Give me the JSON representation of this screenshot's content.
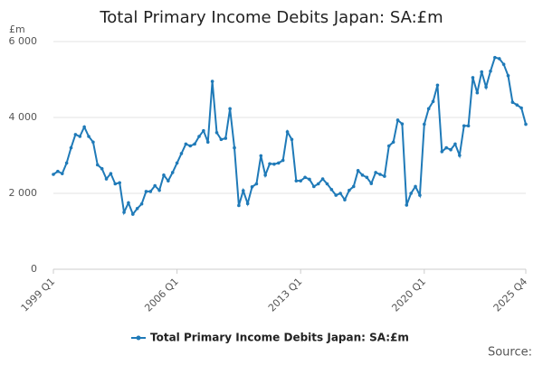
{
  "chart_data": {
    "type": "line",
    "title": "Total Primary Income Debits Japan: SA:£m",
    "y_unit": "£m",
    "source": "Source:",
    "categories": [
      "1999 Q1",
      null,
      null,
      null,
      null,
      null,
      null,
      null,
      null,
      null,
      null,
      null,
      null,
      null,
      null,
      null,
      null,
      null,
      null,
      null,
      null,
      null,
      null,
      null,
      null,
      null,
      null,
      null,
      "2006 Q1",
      null,
      null,
      null,
      null,
      null,
      null,
      null,
      null,
      null,
      null,
      null,
      null,
      null,
      null,
      null,
      null,
      null,
      null,
      null,
      null,
      null,
      null,
      null,
      null,
      null,
      null,
      null,
      "2013 Q1",
      null,
      null,
      null,
      null,
      null,
      null,
      null,
      null,
      null,
      null,
      null,
      null,
      null,
      null,
      null,
      null,
      null,
      null,
      null,
      null,
      null,
      null,
      null,
      null,
      null,
      null,
      null,
      "2020 Q1",
      null,
      null,
      null,
      null,
      null,
      null,
      null,
      null,
      null,
      null,
      null,
      null,
      null,
      null,
      null,
      null,
      null,
      null,
      null,
      null,
      null,
      null,
      "2025 Q4"
    ],
    "series": [
      {
        "name": "Total Primary Income Debits Japan: SA:£m",
        "color": "#1f7ab8",
        "values": [
          2500,
          2580,
          2520,
          2800,
          3200,
          3550,
          3500,
          3750,
          3500,
          3350,
          2750,
          2650,
          2380,
          2520,
          2250,
          2280,
          1500,
          1750,
          1450,
          1600,
          1720,
          2050,
          2050,
          2200,
          2080,
          2480,
          2330,
          2550,
          2800,
          3050,
          3300,
          3250,
          3300,
          3500,
          3650,
          3350,
          4950,
          3600,
          3420,
          3450,
          4230,
          3200,
          1680,
          2070,
          1730,
          2170,
          2250,
          2990,
          2480,
          2780,
          2770,
          2800,
          2870,
          3620,
          3420,
          2330,
          2330,
          2420,
          2370,
          2180,
          2250,
          2380,
          2250,
          2100,
          1950,
          2000,
          1830,
          2080,
          2180,
          2600,
          2480,
          2420,
          2260,
          2550,
          2500,
          2450,
          3250,
          3350,
          3930,
          3830,
          1690,
          2000,
          2180,
          1950,
          3820,
          4230,
          4420,
          4850,
          3100,
          3200,
          3150,
          3300,
          3000,
          3780,
          3780,
          5050,
          4650,
          5200,
          4800,
          5220,
          5580,
          5550,
          5400,
          5100,
          4400,
          4330,
          4250,
          3820
        ]
      }
    ],
    "ylim": [
      0,
      6000
    ],
    "yticks": [
      0,
      {
        "value": 2000,
        "label": "2 000"
      },
      {
        "value": 4000,
        "label": "4 000"
      },
      {
        "value": 6000,
        "label": "6 000"
      }
    ],
    "grid": true
  }
}
